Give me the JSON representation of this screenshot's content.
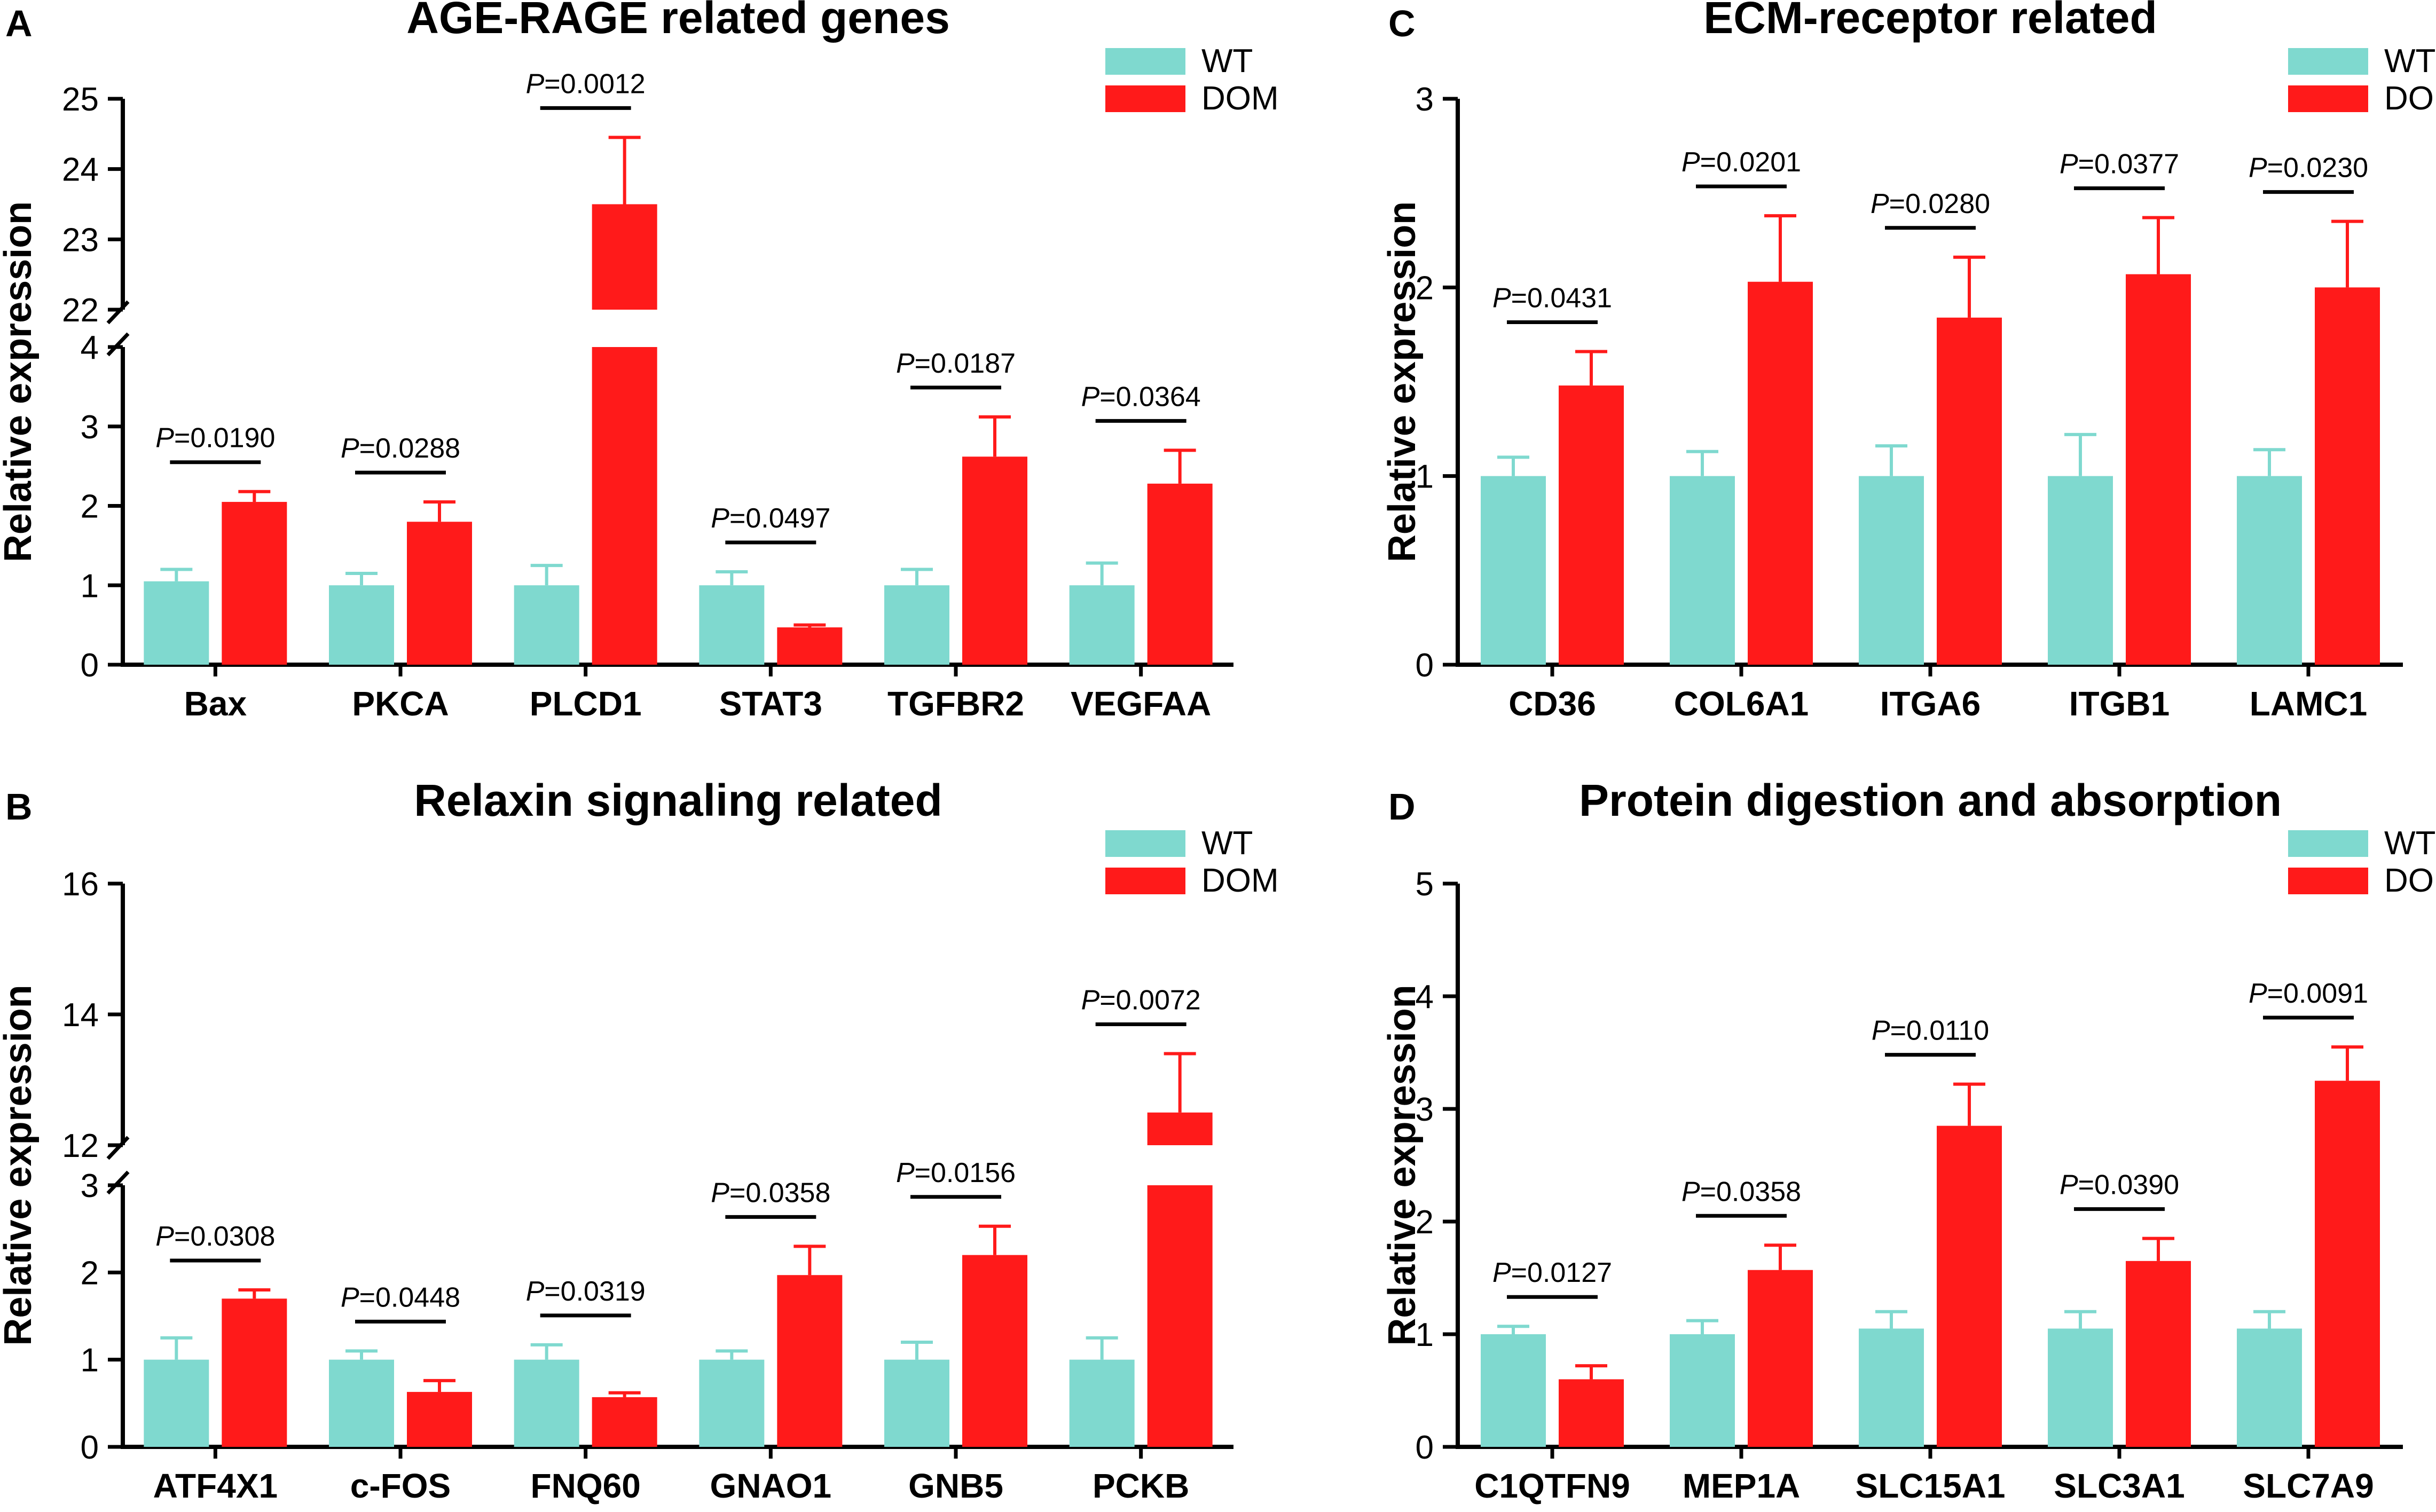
{
  "colors": {
    "wt": "#7fd9cf",
    "dom": "#ff1a1a",
    "axis": "#000000"
  },
  "legend": {
    "wt_label": "WT",
    "dom_label": "DOM"
  },
  "chart_data": [
    {
      "panel": "A",
      "type": "bar",
      "title": "AGE-RAGE related genes",
      "ylabel": "Relative expression",
      "broken_axis": true,
      "ylim_lower": [
        0,
        4
      ],
      "ylim_upper": [
        22,
        25
      ],
      "yticks_lower": [
        "0",
        "1",
        "2",
        "3",
        "4"
      ],
      "yticks_upper": [
        "22",
        "23",
        "24",
        "25"
      ],
      "categories": [
        "Bax",
        "PKCA",
        "PLCD1",
        "STAT3",
        "TGFBR2",
        "VEGFAA"
      ],
      "series": [
        {
          "name": "WT",
          "values": [
            1.05,
            1.0,
            1.0,
            1.0,
            1.0,
            1.0
          ],
          "errors": [
            0.15,
            0.15,
            0.25,
            0.17,
            0.2,
            0.28
          ]
        },
        {
          "name": "DOM",
          "values": [
            2.05,
            1.8,
            23.5,
            0.47,
            2.62,
            2.28
          ],
          "errors": [
            0.13,
            0.25,
            0.95,
            0.03,
            0.5,
            0.42
          ]
        }
      ],
      "p_values": [
        "0.0190",
        "0.0288",
        "0.0012",
        "0.0497",
        "0.0187",
        "0.0364"
      ]
    },
    {
      "panel": "B",
      "type": "bar",
      "title": "Relaxin signaling related",
      "ylabel": "Relative expression",
      "broken_axis": true,
      "ylim_lower": [
        0,
        3
      ],
      "ylim_upper": [
        12,
        16
      ],
      "yticks_lower": [
        "0",
        "1",
        "2",
        "3"
      ],
      "yticks_upper": [
        "12",
        "14",
        "16"
      ],
      "categories": [
        "ATF4X1",
        "c-FOS",
        "FNQ60",
        "GNAO1",
        "GNB5",
        "PCKB"
      ],
      "series": [
        {
          "name": "WT",
          "values": [
            1.0,
            1.0,
            1.0,
            1.0,
            1.0,
            1.0
          ],
          "errors": [
            0.25,
            0.1,
            0.17,
            0.1,
            0.2,
            0.25
          ]
        },
        {
          "name": "DOM",
          "values": [
            1.7,
            0.63,
            0.57,
            1.97,
            2.2,
            12.5
          ],
          "errors": [
            0.1,
            0.13,
            0.05,
            0.33,
            0.33,
            0.9
          ]
        }
      ],
      "p_values": [
        "0.0308",
        "0.0448",
        "0.0319",
        "0.0358",
        "0.0156",
        "0.0072"
      ]
    },
    {
      "panel": "C",
      "type": "bar",
      "title": "ECM-receptor related",
      "ylabel": "Relative expression",
      "broken_axis": false,
      "ylim": [
        0,
        3
      ],
      "yticks": [
        "0",
        "1",
        "2",
        "3"
      ],
      "categories": [
        "CD36",
        "COL6A1",
        "ITGA6",
        "ITGB1",
        "LAMC1"
      ],
      "series": [
        {
          "name": "WT",
          "values": [
            1.0,
            1.0,
            1.0,
            1.0,
            1.0
          ],
          "errors": [
            0.1,
            0.13,
            0.16,
            0.22,
            0.14
          ]
        },
        {
          "name": "DOM",
          "values": [
            1.48,
            2.03,
            1.84,
            2.07,
            2.0
          ],
          "errors": [
            0.18,
            0.35,
            0.32,
            0.3,
            0.35
          ]
        }
      ],
      "p_values": [
        "0.0431",
        "0.0201",
        "0.0280",
        "0.0377",
        "0.0230"
      ]
    },
    {
      "panel": "D",
      "type": "bar",
      "title": "Protein digestion and absorption",
      "ylabel": "Relative expression",
      "broken_axis": false,
      "ylim": [
        0,
        5
      ],
      "yticks": [
        "0",
        "1",
        "2",
        "3",
        "4",
        "5"
      ],
      "categories": [
        "C1QTFN9",
        "MEP1A",
        "SLC15A1",
        "SLC3A1",
        "SLC7A9"
      ],
      "series": [
        {
          "name": "WT",
          "values": [
            1.0,
            1.0,
            1.05,
            1.05,
            1.05
          ],
          "errors": [
            0.07,
            0.12,
            0.15,
            0.15,
            0.15
          ]
        },
        {
          "name": "DOM",
          "values": [
            0.6,
            1.57,
            2.85,
            1.65,
            3.25
          ],
          "errors": [
            0.12,
            0.22,
            0.37,
            0.2,
            0.3
          ]
        }
      ],
      "p_values": [
        "0.0127",
        "0.0358",
        "0.0110",
        "0.0390",
        "0.0091"
      ]
    }
  ]
}
